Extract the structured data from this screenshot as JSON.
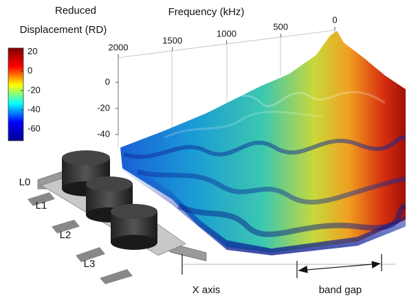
{
  "chart_data": {
    "type": "surface3d",
    "colorbar_title": [
      "Reduced",
      "Displacement (RD)"
    ],
    "colormap": [
      "#00008f",
      "#0000ff",
      "#00ffff",
      "#ffff00",
      "#ff0000",
      "#800000"
    ],
    "clim": [
      -72,
      24
    ],
    "cticks": [
      20,
      0,
      -20,
      -40,
      -60
    ],
    "x_label": "Frequency (kHz)",
    "xlim": [
      2000,
      0
    ],
    "xticks": [
      2000,
      1500,
      1000,
      500,
      0
    ],
    "zlim": [
      -40,
      20
    ],
    "zticks": [
      0,
      -20,
      -40
    ],
    "layers": [
      "L0",
      "L1",
      "L2",
      "L3"
    ],
    "annotations": [
      "X axis",
      "band gap"
    ]
  }
}
